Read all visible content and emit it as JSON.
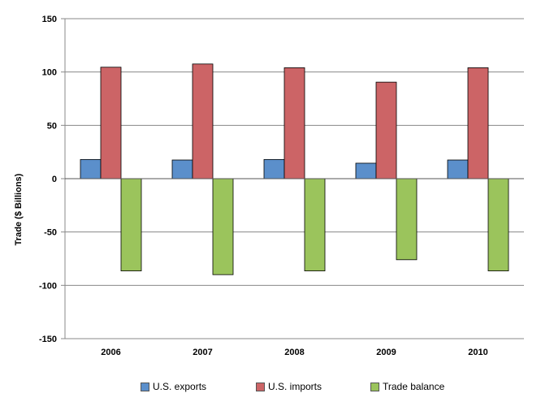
{
  "chart_data": {
    "type": "bar",
    "categories": [
      "2006",
      "2007",
      "2008",
      "2009",
      "2010"
    ],
    "series": [
      {
        "name": "U.S. exports",
        "color": "#5b8fcb",
        "values": [
          18,
          17.5,
          18,
          14.5,
          17.5
        ]
      },
      {
        "name": "U.S. imports",
        "color": "#cc6466",
        "values": [
          104.5,
          107.5,
          104,
          90.5,
          104
        ]
      },
      {
        "name": "Trade balance",
        "color": "#9bc45c",
        "values": [
          -86.5,
          -90,
          -86.5,
          -76,
          -86.5
        ]
      }
    ],
    "title": "",
    "xlabel": "",
    "ylabel": "Trade ($ Billions)",
    "ylim": [
      -150,
      150
    ],
    "yticks": [
      150,
      100,
      50,
      0,
      -50,
      -100,
      -150
    ],
    "ytick_labels": [
      "150",
      "100",
      "50",
      "0",
      "-50",
      "-100",
      "-150"
    ],
    "grid": true,
    "legend_position": "bottom"
  }
}
